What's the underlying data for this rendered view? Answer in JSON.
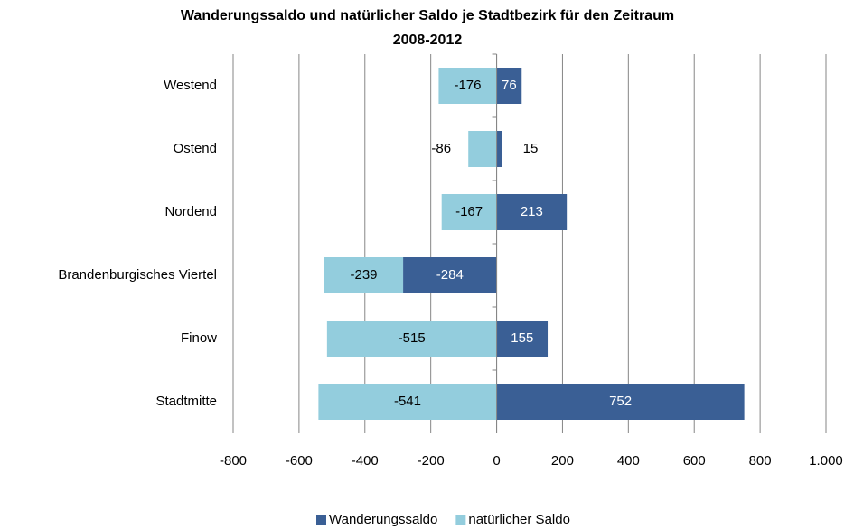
{
  "chart_data": {
    "type": "stacked_barh",
    "title": [
      "Wanderungssaldo und natürlicher Saldo je Stadtbezirk für den Zeitraum",
      "2008-2012"
    ],
    "categories": [
      "Westend",
      "Ostend",
      "Nordend",
      "Brandenburgisches Viertel",
      "Finow",
      "Stadtmitte"
    ],
    "series": [
      {
        "name": "Wanderungssaldo",
        "color": "#3a5f95",
        "label_color": "#ffffff",
        "values": [
          76,
          15,
          213,
          -284,
          155,
          752
        ]
      },
      {
        "name": "natürlicher Saldo",
        "color": "#93cddd",
        "label_color": "#000000",
        "values": [
          -176,
          -86,
          -167,
          -239,
          -515,
          -541
        ]
      }
    ],
    "xlim": [
      -800,
      1000
    ],
    "xticks": [
      -800,
      -600,
      -400,
      -200,
      0,
      200,
      400,
      600,
      800,
      {
        "value": 1000,
        "label": "1.000"
      }
    ],
    "grid": true,
    "legend": "bottom"
  }
}
